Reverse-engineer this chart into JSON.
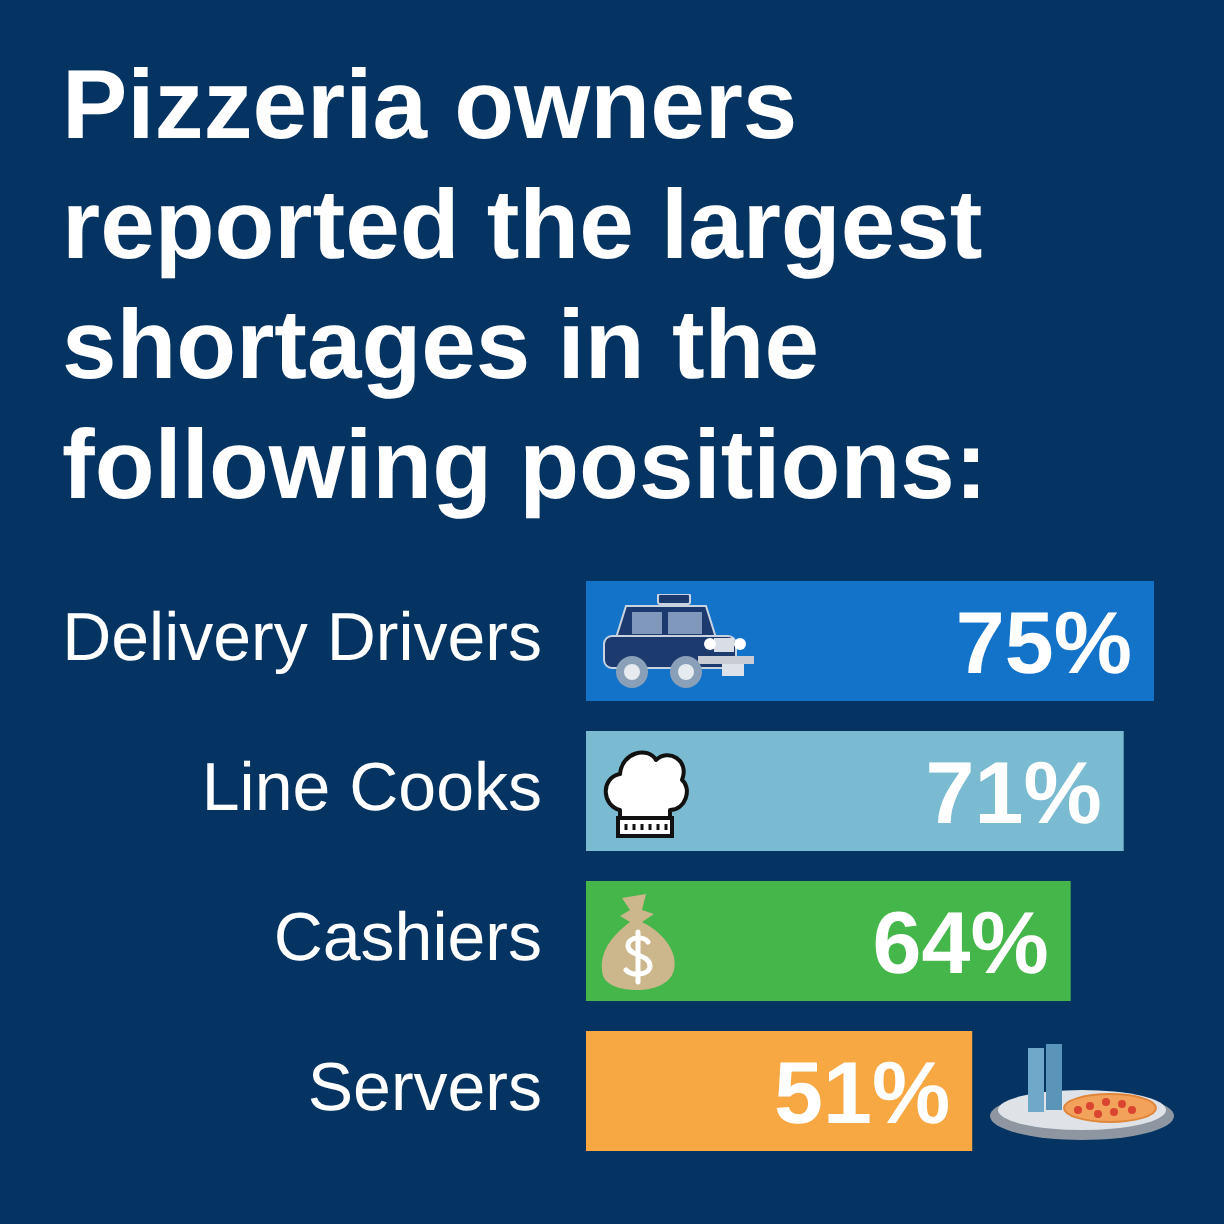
{
  "chart_data": {
    "type": "bar",
    "orientation": "horizontal",
    "title": "Pizzeria owners reported the largest shortages in the following positions:",
    "categories": [
      "Delivery Drivers",
      "Line Cooks",
      "Cashiers",
      "Servers"
    ],
    "values": [
      75,
      71,
      64,
      51
    ],
    "colors": [
      "#1273c9",
      "#7bbbd1",
      "#45b649",
      "#f7a843"
    ],
    "value_labels": [
      "75%",
      "71%",
      "64%",
      "51%"
    ],
    "tick_labels": "y"
  }
}
